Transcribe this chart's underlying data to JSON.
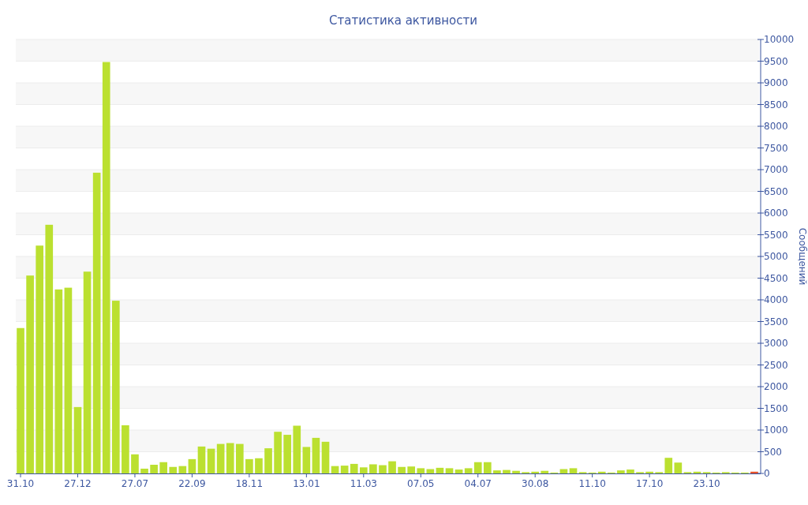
{
  "chart_data": {
    "type": "bar",
    "title": "Статистика активности",
    "ylabel": "Сообщений",
    "categories": [
      "31.10",
      null,
      null,
      null,
      null,
      null,
      "27.12",
      null,
      null,
      null,
      null,
      null,
      "27.07",
      null,
      null,
      null,
      null,
      null,
      "22.09",
      null,
      null,
      null,
      null,
      null,
      "18.11",
      null,
      null,
      null,
      null,
      null,
      "13.01",
      null,
      null,
      null,
      null,
      null,
      "11.03",
      null,
      null,
      null,
      null,
      null,
      "07.05",
      null,
      null,
      null,
      null,
      null,
      "04.07",
      null,
      null,
      null,
      null,
      null,
      "30.08",
      null,
      null,
      null,
      null,
      null,
      "11.10",
      null,
      null,
      null,
      null,
      null,
      "17.10",
      null,
      null,
      null,
      null,
      null,
      "23.10",
      null,
      null,
      null,
      null,
      null
    ],
    "values": [
      3350,
      4560,
      5250,
      5730,
      4240,
      4280,
      1530,
      4650,
      6930,
      9480,
      3980,
      1110,
      440,
      110,
      200,
      260,
      150,
      170,
      330,
      620,
      570,
      680,
      700,
      680,
      330,
      350,
      580,
      960,
      890,
      1100,
      610,
      820,
      730,
      170,
      180,
      220,
      140,
      210,
      190,
      280,
      150,
      160,
      120,
      100,
      130,
      120,
      90,
      120,
      260,
      260,
      70,
      80,
      60,
      30,
      40,
      60,
      20,
      100,
      120,
      30,
      20,
      40,
      20,
      70,
      90,
      30,
      40,
      30,
      360,
      250,
      30,
      40,
      30,
      20,
      30,
      20,
      20,
      40
    ],
    "colors": [
      "#bbe030",
      "#bbe030",
      "#bbe030",
      "#bbe030",
      "#bbe030",
      "#bbe030",
      "#bbe030",
      "#bbe030",
      "#bbe030",
      "#bbe030",
      "#bbe030",
      "#bbe030",
      "#bbe030",
      "#bbe030",
      "#bbe030",
      "#bbe030",
      "#bbe030",
      "#bbe030",
      "#bbe030",
      "#bbe030",
      "#bbe030",
      "#bbe030",
      "#bbe030",
      "#bbe030",
      "#bbe030",
      "#bbe030",
      "#bbe030",
      "#bbe030",
      "#bbe030",
      "#bbe030",
      "#bbe030",
      "#bbe030",
      "#bbe030",
      "#bbe030",
      "#bbe030",
      "#bbe030",
      "#bbe030",
      "#bbe030",
      "#bbe030",
      "#bbe030",
      "#bbe030",
      "#bbe030",
      "#bbe030",
      "#bbe030",
      "#bbe030",
      "#bbe030",
      "#bbe030",
      "#bbe030",
      "#bbe030",
      "#bbe030",
      "#bbe030",
      "#bbe030",
      "#bbe030",
      "#bbe030",
      "#bbe030",
      "#bbe030",
      "#bbe030",
      "#bbe030",
      "#bbe030",
      "#bbe030",
      "#bbe030",
      "#bbe030",
      "#bbe030",
      "#bbe030",
      "#bbe030",
      "#bbe030",
      "#bbe030",
      "#bbe030",
      "#bbe030",
      "#bbe030",
      "#bbe030",
      "#bbe030",
      "#bbe030",
      "#bbe030",
      "#bbe030",
      "#bbe030",
      "#bbe030",
      "#e8532a"
    ],
    "ylim": [
      0,
      10000
    ],
    "yticks": [
      0,
      500,
      1000,
      1500,
      2000,
      2500,
      3000,
      3500,
      4000,
      4500,
      5000,
      5500,
      6000,
      6500,
      7000,
      7500,
      8000,
      8500,
      9000,
      9500,
      10000
    ],
    "grid": "y"
  }
}
